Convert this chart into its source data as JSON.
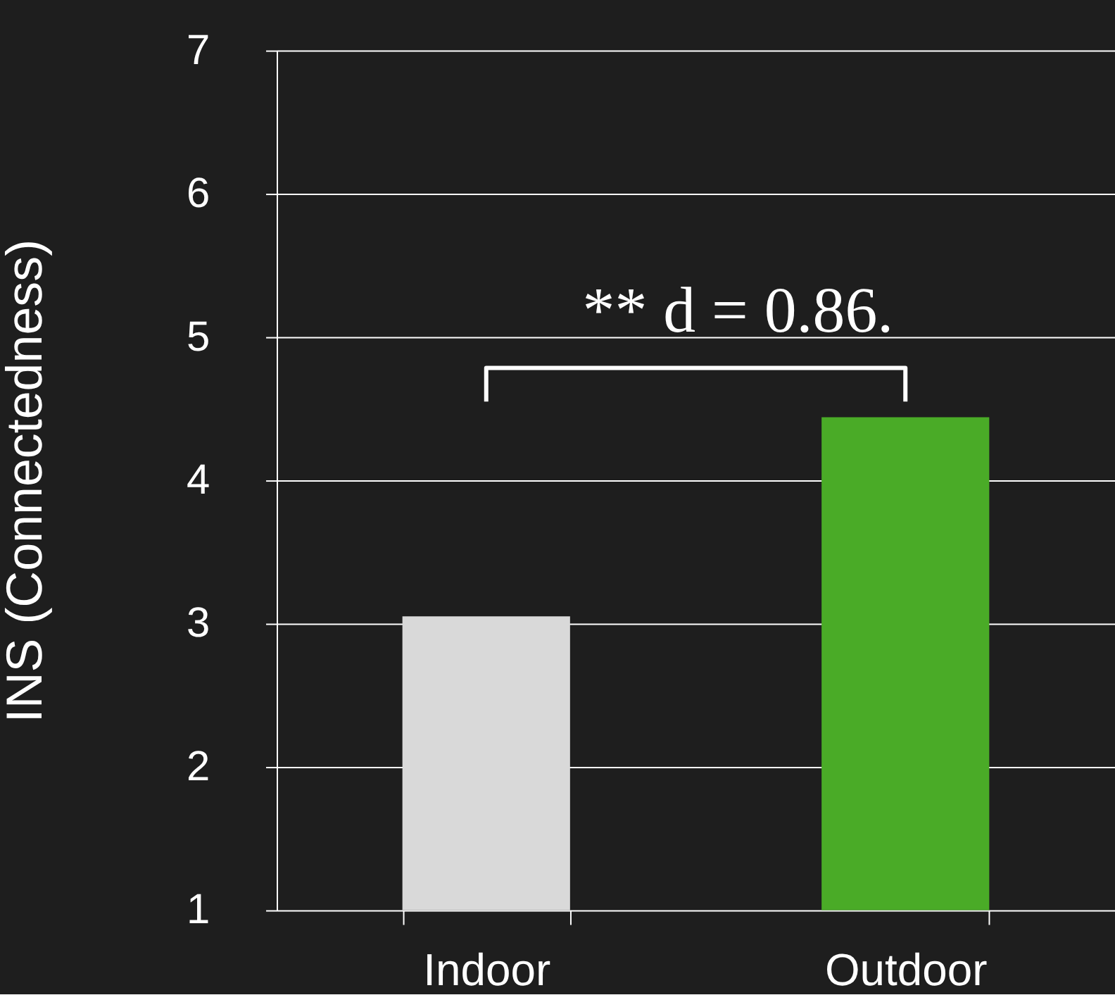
{
  "chart_data": {
    "type": "bar",
    "categories": [
      "Indoor",
      "Outdoor"
    ],
    "values": [
      3.05,
      4.44
    ],
    "colors": [
      "#d9d9d9",
      "#4aab27"
    ],
    "ylabel": "INS (Connectedness)",
    "ylim": [
      1,
      7
    ],
    "yticks": [
      1,
      2,
      3,
      4,
      5,
      6,
      7
    ],
    "grid": "y",
    "annotations": [
      "**  d = 0.86."
    ]
  }
}
